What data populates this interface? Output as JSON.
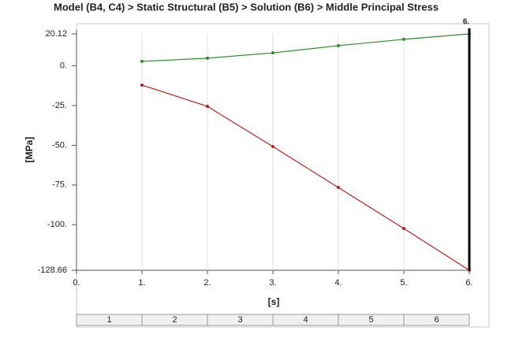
{
  "chart_data": {
    "type": "line",
    "title": "Model (B4, C4) > Static Structural (B5) > Solution (B6) > Middle Principal Stress",
    "x_label": "[s]",
    "y_label": "[MPa]",
    "x": [
      1,
      2,
      3,
      4,
      5,
      6
    ],
    "series": [
      {
        "color": "#2e8b2e",
        "values": [
          2.8,
          4.8,
          8.2,
          12.7,
          16.7,
          20.12
        ]
      },
      {
        "color": "#b22222",
        "values": [
          -12.1,
          -25.5,
          -50.8,
          -76.6,
          -102.4,
          -128.66
        ]
      }
    ],
    "xlim": [
      0,
      6
    ],
    "xticks": [
      {
        "value": 0,
        "label": "0."
      },
      {
        "value": 1,
        "label": "1."
      },
      {
        "value": 2,
        "label": "2."
      },
      {
        "value": 3,
        "label": "3."
      },
      {
        "value": 4,
        "label": "4."
      },
      {
        "value": 5,
        "label": "5."
      },
      {
        "value": 6,
        "label": "6."
      }
    ],
    "ylim": [
      -128.66,
      20.12
    ],
    "yticks": [
      20.12,
      {
        "value": 0,
        "label": "0."
      },
      {
        "value": -25,
        "label": "-25."
      },
      {
        "value": -50,
        "label": "-50."
      },
      {
        "value": -75,
        "label": "-75."
      },
      {
        "value": -100,
        "label": "-100."
      },
      -128.66
    ],
    "cursor": {
      "value": 6,
      "label": "6."
    },
    "steps": [
      1,
      2,
      3,
      4,
      5,
      6
    ],
    "grid": true
  }
}
